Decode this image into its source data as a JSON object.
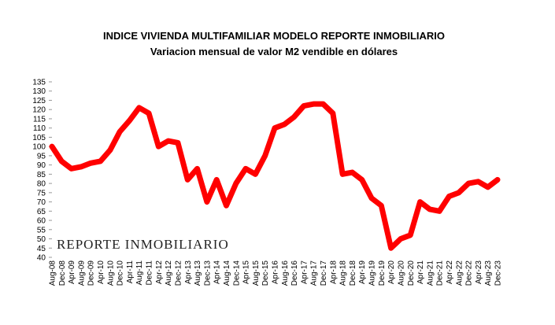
{
  "chart_data": {
    "type": "line",
    "title": "INDICE VIVIENDA MULTIFAMILIAR MODELO REPORTE INMOBILIARIO",
    "subtitle": "Variacion mensual de valor M2 vendible en dólares",
    "watermark": "REPORTE INMOBILIARIO",
    "categories": [
      "Aug-08",
      "Dec-08",
      "Apr-09",
      "Aug-09",
      "Dec-09",
      "Apr-10",
      "Aug-10",
      "Dec-10",
      "Apr-11",
      "Aug-11",
      "Dec-11",
      "Apr-12",
      "Aug-12",
      "Dec-12",
      "Apr-13",
      "Aug-13",
      "Dec-13",
      "Apr-14",
      "Aug-14",
      "Dec-14",
      "Apr-15",
      "Aug-15",
      "Dec-15",
      "Apr-16",
      "Aug-16",
      "Dec-16",
      "Apr-17",
      "Aug-17",
      "Dec-17",
      "Apr-18",
      "Aug-18",
      "Dec-18",
      "Apr-19",
      "Aug-19",
      "Dec-19",
      "Apr-20",
      "Aug-20",
      "Dec-20",
      "Apr-21",
      "Aug-21",
      "Dec-21",
      "Apr-22",
      "Aug-22",
      "Dec-22",
      "Apr-23",
      "Aug-23",
      "Dec-23"
    ],
    "values": [
      100,
      92,
      88,
      89,
      91,
      92,
      98,
      108,
      114,
      121,
      118,
      100,
      103,
      102,
      82,
      88,
      70,
      82,
      68,
      80,
      88,
      85,
      95,
      110,
      112,
      116,
      122,
      123,
      123,
      118,
      85,
      86,
      82,
      72,
      68,
      45,
      50,
      52,
      70,
      66,
      65,
      73,
      75,
      80,
      81,
      78,
      82
    ],
    "color": "#ff0000",
    "ylim": [
      40,
      135
    ],
    "yticks": [
      40,
      45,
      50,
      55,
      60,
      65,
      70,
      75,
      80,
      85,
      90,
      95,
      100,
      105,
      110,
      115,
      120,
      125,
      130,
      135
    ]
  }
}
